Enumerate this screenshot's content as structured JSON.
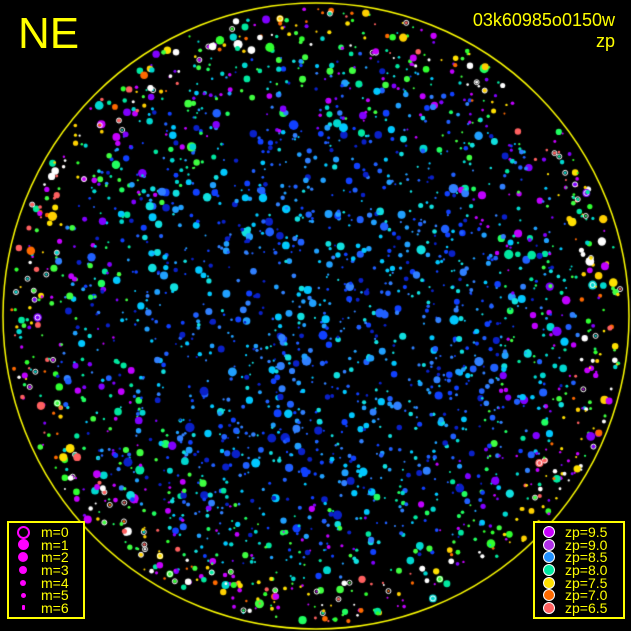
{
  "orientation_label": "NE",
  "frame_id": "03k60985o0150w",
  "color_mode": "zp",
  "horizon_color": "#ffff00",
  "magnitude_legend": [
    {
      "label": "m=0",
      "style": "ring",
      "color": "#ff00ff"
    },
    {
      "label": "m=1",
      "style": "dot",
      "color": "#ff00ff"
    },
    {
      "label": "m=2",
      "style": "dot",
      "color": "#ff00ff"
    },
    {
      "label": "m=3",
      "style": "dot",
      "color": "#ff00ff"
    },
    {
      "label": "m=4",
      "style": "dot",
      "color": "#ff00ff"
    },
    {
      "label": "m=5",
      "style": "dot",
      "color": "#ff00ff"
    },
    {
      "label": "m=6",
      "style": "dot",
      "color": "#ff00ff"
    }
  ],
  "zp_legend": [
    {
      "label": "zp=9.5",
      "color": "#c800ff"
    },
    {
      "label": "zp=9.0",
      "color": "#b030e8"
    },
    {
      "label": "zp=8.5",
      "color": "#2090ff"
    },
    {
      "label": "zp=8.0",
      "color": "#00e8a0"
    },
    {
      "label": "zp=7.5",
      "color": "#ffe000"
    },
    {
      "label": "zp=7.0",
      "color": "#ff6a00"
    },
    {
      "label": "zp=6.5",
      "color": "#ff6060"
    }
  ]
}
